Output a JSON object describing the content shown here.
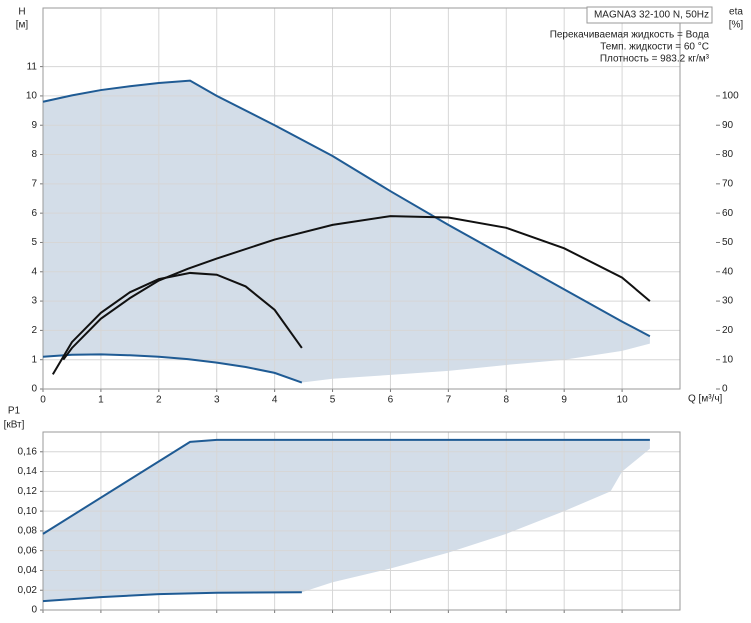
{
  "chart_data": [
    {
      "type": "line",
      "y_label": "H",
      "y_unit": "[м]",
      "y2_label": "eta",
      "y2_unit": "[%]",
      "x_label": "Q [м³/ч]",
      "xlim": [
        0,
        11
      ],
      "xticks": [
        0,
        1,
        2,
        3,
        4,
        5,
        6,
        7,
        8,
        9,
        10
      ],
      "ylim": [
        0,
        13
      ],
      "yticks": [
        0,
        1,
        2,
        3,
        4,
        5,
        6,
        7,
        8,
        9,
        10,
        11
      ],
      "y2lim": [
        0,
        130
      ],
      "y2ticks": [
        0,
        10,
        20,
        30,
        40,
        50,
        60,
        70,
        80,
        90,
        100
      ],
      "grid": true,
      "show_xtick_labels": true,
      "area": {
        "color": "#d3dde8",
        "x": [
          0,
          0.5,
          1,
          1.5,
          2,
          2.54,
          3,
          4,
          5,
          6,
          7,
          8,
          9,
          10,
          10.48,
          10.48,
          10,
          9,
          8,
          7,
          6,
          5,
          4.47,
          4,
          3.5,
          3,
          2.5,
          2,
          1.5,
          1,
          0.5,
          0
        ],
        "y": [
          9.8,
          10.02,
          10.2,
          10.33,
          10.44,
          10.52,
          10.0,
          9.0,
          7.95,
          6.75,
          5.6,
          4.5,
          3.4,
          2.3,
          1.8,
          1.55,
          1.3,
          1.0,
          0.82,
          0.62,
          0.48,
          0.35,
          0.22,
          0.55,
          0.75,
          0.9,
          1.02,
          1.1,
          1.15,
          1.18,
          1.17,
          1.1
        ]
      },
      "series": [
        {
          "color": "#1f5b94",
          "x": [
            0,
            0.5,
            1,
            1.5,
            2,
            2.54,
            3,
            4,
            5,
            6,
            7,
            8,
            9,
            10,
            10.48
          ],
          "values": [
            9.8,
            10.02,
            10.2,
            10.33,
            10.44,
            10.52,
            10.0,
            9.0,
            7.95,
            6.75,
            5.6,
            4.5,
            3.4,
            2.3,
            1.8
          ]
        },
        {
          "color": "#1f5b94",
          "x": [
            0,
            0.5,
            1,
            1.5,
            2,
            2.5,
            3,
            3.5,
            4,
            4.47
          ],
          "values": [
            1.1,
            1.17,
            1.18,
            1.15,
            1.1,
            1.02,
            0.9,
            0.75,
            0.55,
            0.22
          ]
        },
        {
          "color": "#111111",
          "axis": "y2",
          "x": [
            0.35,
            0.5,
            1,
            1.5,
            2,
            2.5,
            3,
            4,
            5,
            6,
            7,
            8,
            9,
            10,
            10.48
          ],
          "values": [
            10,
            14,
            24,
            31,
            37,
            41,
            44.5,
            51,
            56,
            59,
            58.5,
            55,
            48,
            38,
            30
          ]
        },
        {
          "color": "#111111",
          "axis": "y2",
          "x": [
            0.17,
            0.5,
            1,
            1.5,
            2,
            2.54,
            3,
            3.5,
            4,
            4.47
          ],
          "values": [
            5,
            16,
            26,
            33,
            37.5,
            39.6,
            39,
            35,
            27,
            14
          ]
        }
      ]
    },
    {
      "type": "line",
      "y_label": "P1",
      "y_unit": "[кВт]",
      "xlim": [
        0,
        11
      ],
      "xticks": [
        0,
        1,
        2,
        3,
        4,
        5,
        6,
        7,
        8,
        9,
        10
      ],
      "ylim": [
        0,
        0.18
      ],
      "yticks": [
        0,
        {
          "value": 0.02,
          "label": "0,02"
        },
        {
          "value": 0.04,
          "label": "0,04"
        },
        {
          "value": 0.06,
          "label": "0,06"
        },
        {
          "value": 0.08,
          "label": "0,08"
        },
        {
          "value": 0.1,
          "label": "0,10"
        },
        {
          "value": 0.12,
          "label": "0,12"
        },
        {
          "value": 0.14,
          "label": "0,14"
        },
        {
          "value": 0.16,
          "label": "0,16"
        }
      ],
      "grid": true,
      "show_xtick_labels": false,
      "area": {
        "color": "#d3dde8",
        "x": [
          0,
          2.54,
          3,
          10.48,
          10.48,
          10,
          9.8,
          9,
          8,
          7,
          6,
          5,
          4.47,
          3,
          2,
          1,
          0
        ],
        "y": [
          0.077,
          0.17,
          0.172,
          0.172,
          0.163,
          0.14,
          0.12,
          0.1,
          0.077,
          0.058,
          0.042,
          0.028,
          0.018,
          0.0175,
          0.016,
          0.013,
          0.009
        ]
      },
      "series": [
        {
          "color": "#1f5b94",
          "x": [
            0,
            2.54,
            3,
            10.48
          ],
          "values": [
            0.077,
            0.17,
            0.172,
            0.172
          ]
        },
        {
          "color": "#1f5b94",
          "x": [
            0,
            1,
            2,
            3,
            4.47
          ],
          "values": [
            0.009,
            0.013,
            0.016,
            0.0175,
            0.018
          ]
        }
      ]
    }
  ],
  "info": {
    "title": "MAGNA3 32-100 N, 50Hz",
    "lines": [
      "Перекачиваемая жидкость = Вода",
      "Темп. жидкости = 60 °C",
      "Плотность = 983.2 кг/м³"
    ]
  }
}
